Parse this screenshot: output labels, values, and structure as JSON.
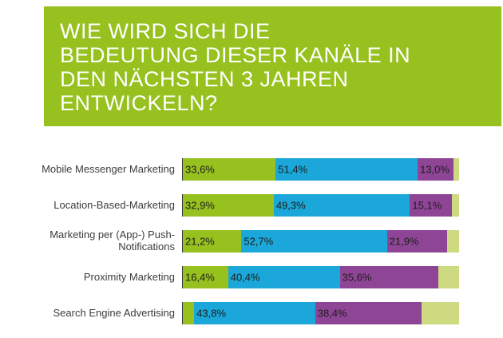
{
  "header": {
    "lines": [
      "WIE WIRD SICH DIE",
      "BEDEUTUNG DIESER KANÄLE IN",
      "DEN NÄCHSTEN 3 JAHREN",
      "ENTWICKELN?"
    ]
  },
  "colors": {
    "header_bg": "#97c11f",
    "green": "#97c11f",
    "blue": "#1ba7d9",
    "purple": "#8e4596",
    "light_green": "#cdda7f",
    "label_text": "#1d1d1b",
    "category_text": "#3c3c3b"
  },
  "chart_data": {
    "type": "bar",
    "orientation": "horizontal",
    "stacked": true,
    "title": "Wie wird sich die Bedeutung dieser Kanäle in den nächsten 3 Jahren entwickeln?",
    "unit": "%",
    "xlim": [
      0,
      100
    ],
    "legend": "none",
    "categories": [
      "Mobile Messenger Marketing",
      "Location-Based-Marketing",
      "Marketing per (App-) Push-Notifications",
      "Proximity Marketing",
      "Search Engine Advertising"
    ],
    "series": [
      {
        "name": "green",
        "color": "#97c11f",
        "values": [
          33.6,
          32.9,
          21.2,
          16.4,
          4.1
        ],
        "labels": [
          "33,6%",
          "32,9%",
          "21,2%",
          "16,4%",
          ""
        ]
      },
      {
        "name": "blue",
        "color": "#1ba7d9",
        "values": [
          51.4,
          49.3,
          52.7,
          40.4,
          43.8
        ],
        "labels": [
          "51,4%",
          "49,3%",
          "52,7%",
          "40,4%",
          "43,8%"
        ]
      },
      {
        "name": "purple",
        "color": "#8e4596",
        "values": [
          13.0,
          15.1,
          21.9,
          35.6,
          38.4
        ],
        "labels": [
          "13,0%",
          "15,1%",
          "21,9%",
          "35,6%",
          "38,4%"
        ]
      },
      {
        "name": "light-green",
        "color": "#cdda7f",
        "values": [
          2.0,
          2.7,
          4.2,
          7.6,
          13.7
        ],
        "labels": [
          "",
          "",
          "",
          "",
          ""
        ]
      }
    ]
  }
}
